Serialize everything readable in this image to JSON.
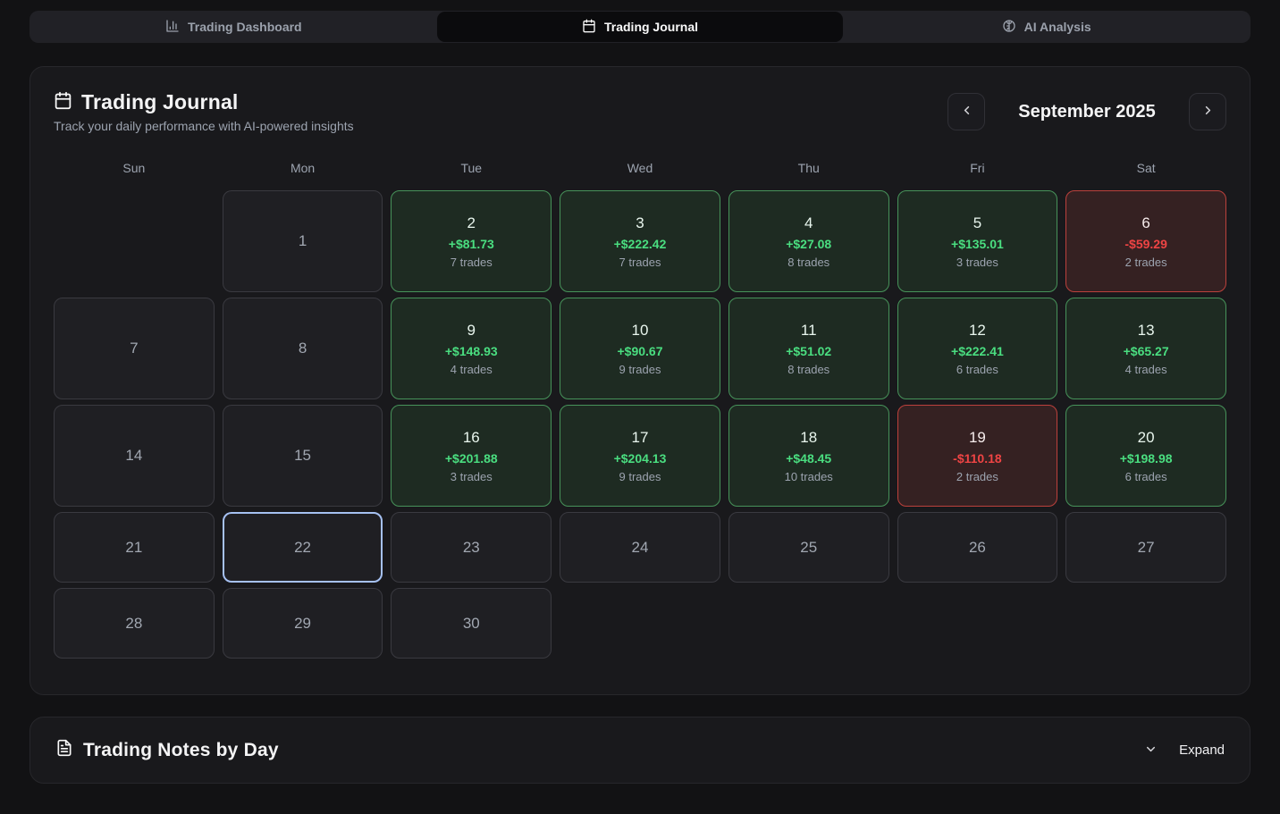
{
  "nav": {
    "tabs": [
      {
        "label": "Trading Dashboard",
        "icon": "bar-chart-icon",
        "active": false
      },
      {
        "label": "Trading Journal",
        "icon": "calendar-icon",
        "active": true
      },
      {
        "label": "AI Analysis",
        "icon": "brain-icon",
        "active": false
      }
    ]
  },
  "journal": {
    "title": "Trading Journal",
    "subtitle": "Track your daily performance with AI-powered insights",
    "month_label": "September 2025",
    "prev_icon": "chevron-left-icon",
    "next_icon": "chevron-right-icon",
    "weekdays": [
      "Sun",
      "Mon",
      "Tue",
      "Wed",
      "Thu",
      "Fri",
      "Sat"
    ],
    "days": [
      {
        "empty": true
      },
      {
        "day": "1",
        "type": "none"
      },
      {
        "day": "2",
        "type": "profit",
        "pnl": "+$81.73",
        "trades": "7 trades"
      },
      {
        "day": "3",
        "type": "profit",
        "pnl": "+$222.42",
        "trades": "7 trades"
      },
      {
        "day": "4",
        "type": "profit",
        "pnl": "+$27.08",
        "trades": "8 trades"
      },
      {
        "day": "5",
        "type": "profit",
        "pnl": "+$135.01",
        "trades": "3 trades"
      },
      {
        "day": "6",
        "type": "loss",
        "pnl": "-$59.29",
        "trades": "2 trades"
      },
      {
        "day": "7",
        "type": "none"
      },
      {
        "day": "8",
        "type": "none"
      },
      {
        "day": "9",
        "type": "profit",
        "pnl": "+$148.93",
        "trades": "4 trades"
      },
      {
        "day": "10",
        "type": "profit",
        "pnl": "+$90.67",
        "trades": "9 trades"
      },
      {
        "day": "11",
        "type": "profit",
        "pnl": "+$51.02",
        "trades": "8 trades"
      },
      {
        "day": "12",
        "type": "profit",
        "pnl": "+$222.41",
        "trades": "6 trades"
      },
      {
        "day": "13",
        "type": "profit",
        "pnl": "+$65.27",
        "trades": "4 trades"
      },
      {
        "day": "14",
        "type": "none"
      },
      {
        "day": "15",
        "type": "none"
      },
      {
        "day": "16",
        "type": "profit",
        "pnl": "+$201.88",
        "trades": "3 trades"
      },
      {
        "day": "17",
        "type": "profit",
        "pnl": "+$204.13",
        "trades": "9 trades"
      },
      {
        "day": "18",
        "type": "profit",
        "pnl": "+$48.45",
        "trades": "10 trades"
      },
      {
        "day": "19",
        "type": "loss",
        "pnl": "-$110.18",
        "trades": "2 trades"
      },
      {
        "day": "20",
        "type": "profit",
        "pnl": "+$198.98",
        "trades": "6 trades"
      },
      {
        "day": "21",
        "type": "none"
      },
      {
        "day": "22",
        "type": "none",
        "today": true
      },
      {
        "day": "23",
        "type": "none"
      },
      {
        "day": "24",
        "type": "none"
      },
      {
        "day": "25",
        "type": "none"
      },
      {
        "day": "26",
        "type": "none"
      },
      {
        "day": "27",
        "type": "none"
      },
      {
        "day": "28",
        "type": "none"
      },
      {
        "day": "29",
        "type": "none"
      },
      {
        "day": "30",
        "type": "none"
      }
    ]
  },
  "notes": {
    "title": "Trading Notes by Day",
    "icon": "file-text-icon",
    "expand_label": "Expand",
    "expand_icon": "chevron-down-icon"
  },
  "colors": {
    "profit_text": "#4ade80",
    "profit_border": "#47935a",
    "profit_bg": "#1e2b22",
    "loss_text": "#ef4444",
    "loss_border": "#bc413c",
    "loss_bg": "#352122",
    "today_border": "#a6c1f2",
    "page_bg": "#121214",
    "card_bg": "#19191c"
  }
}
